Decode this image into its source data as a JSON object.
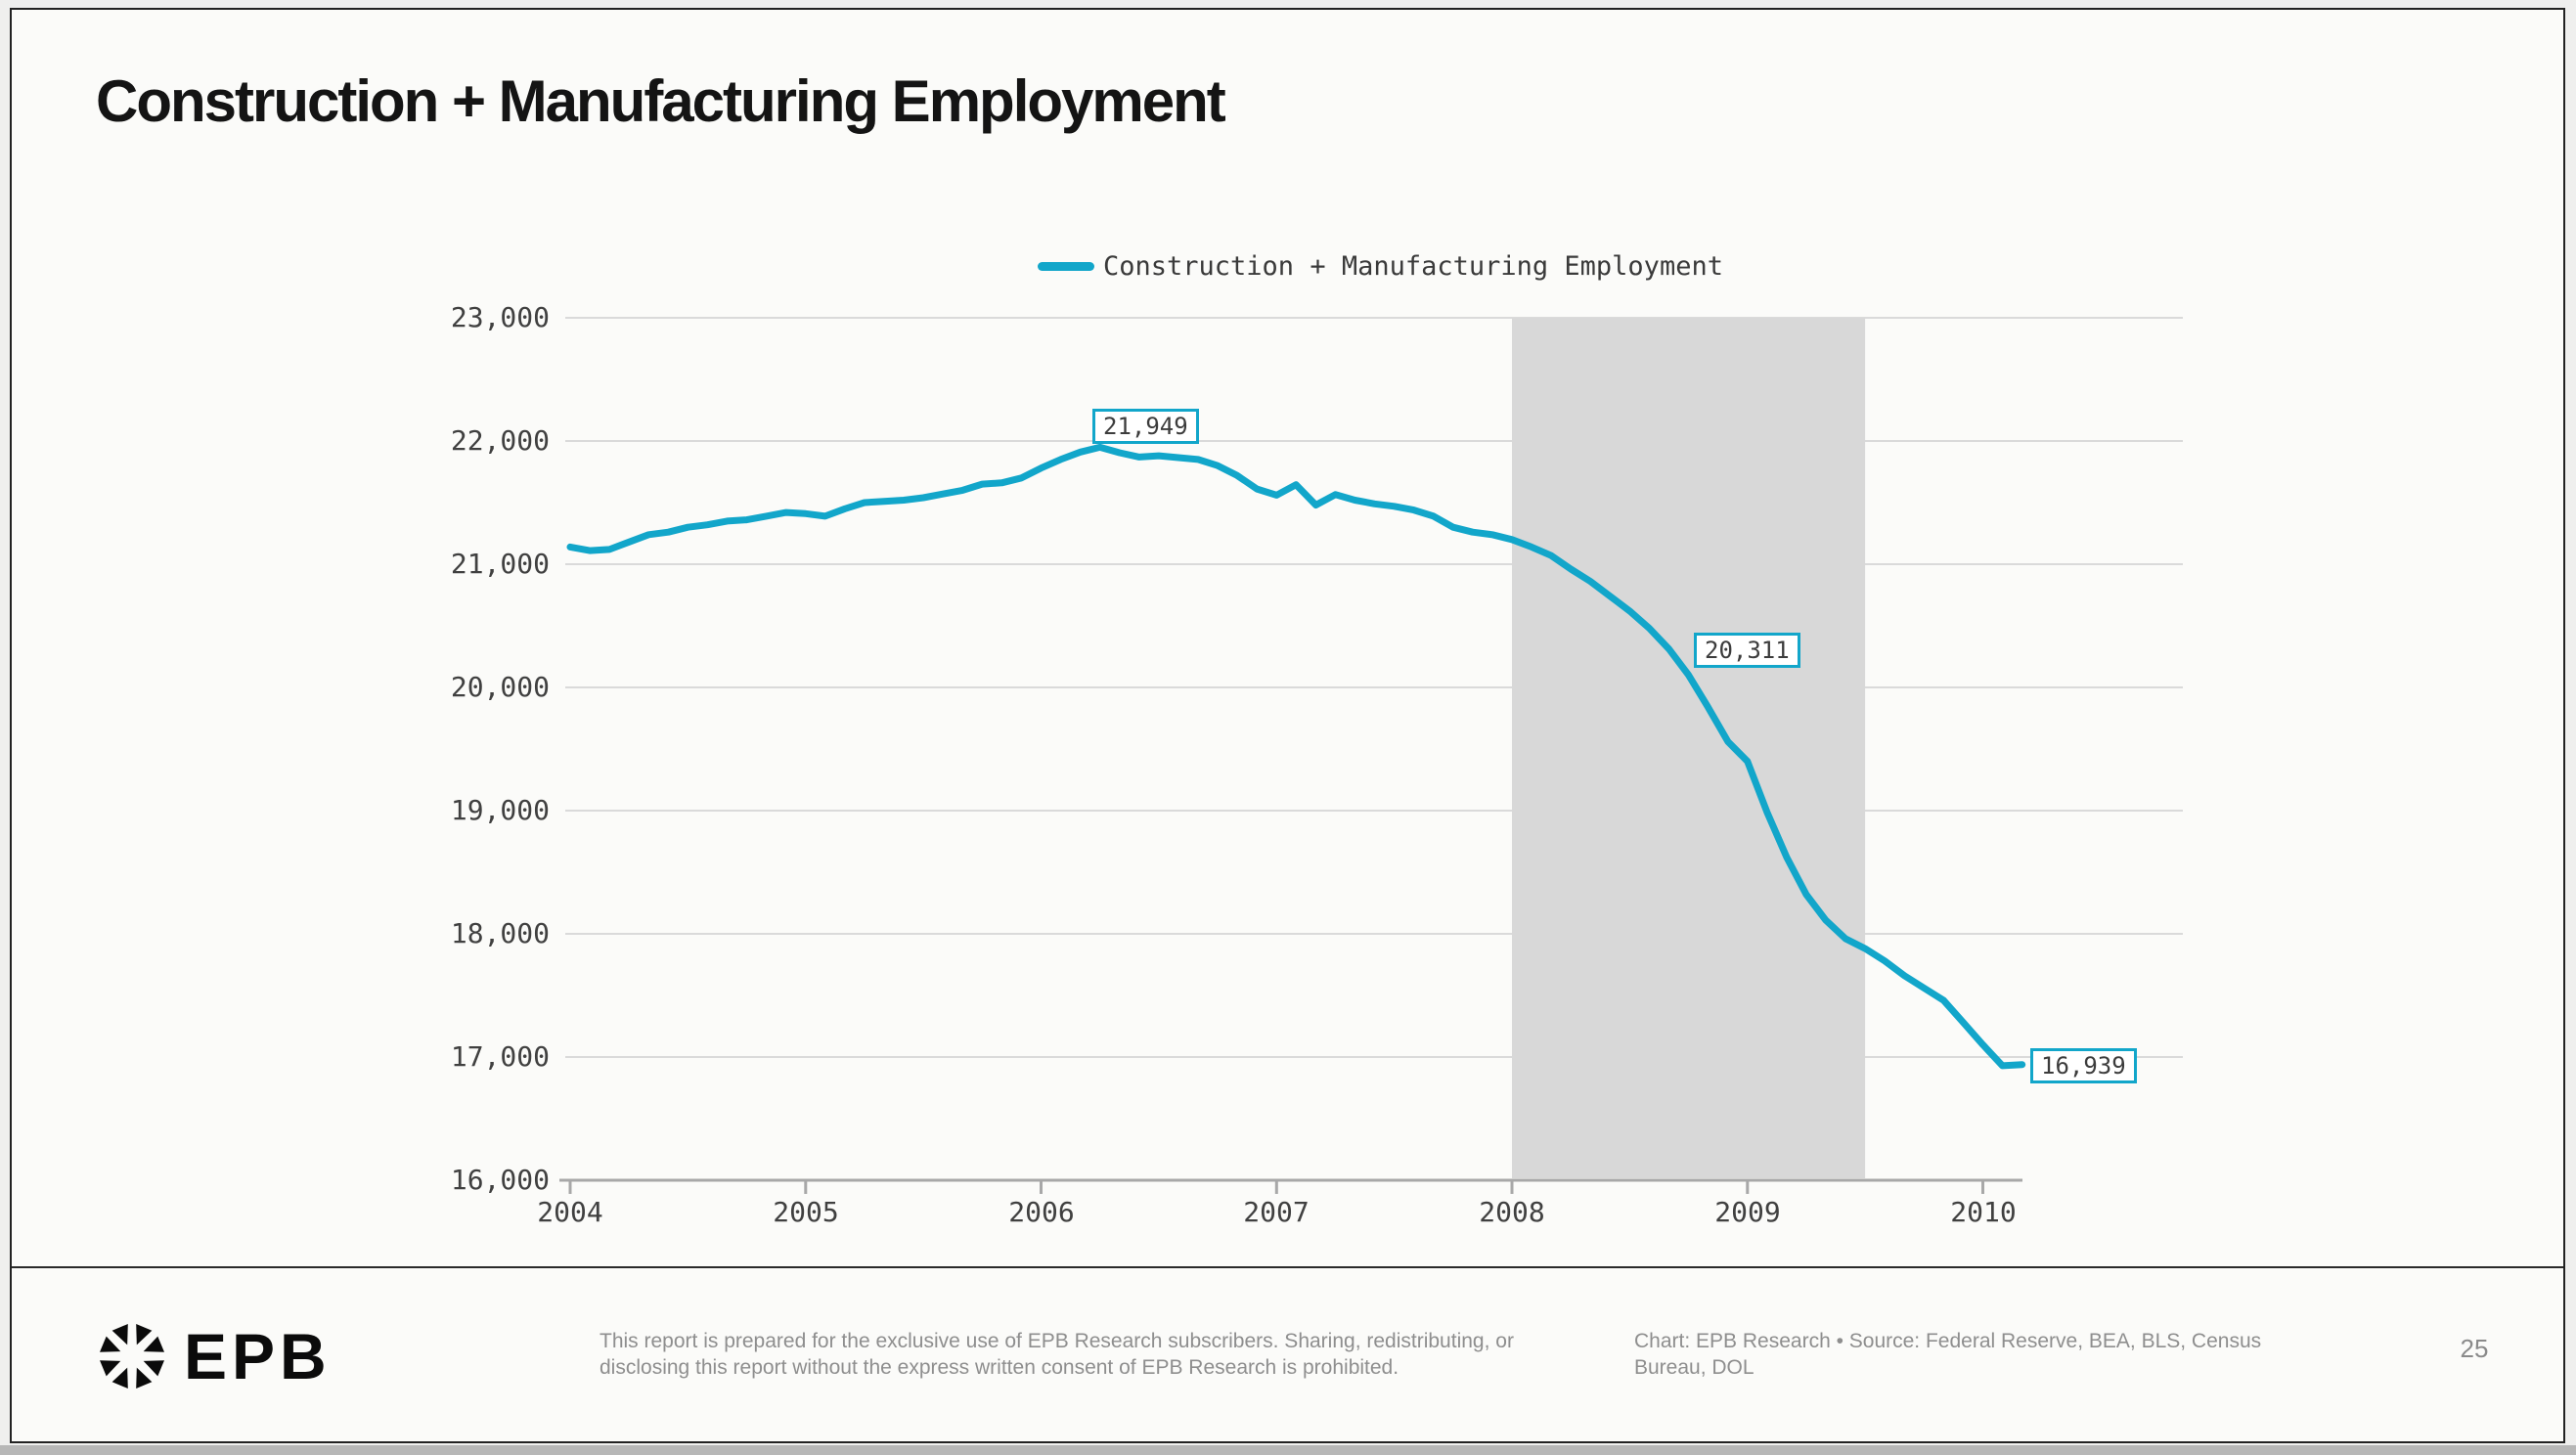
{
  "page": {
    "title": "Construction + Manufacturing Employment",
    "page_number": "25"
  },
  "legend": {
    "label": "Construction + Manufacturing Employment"
  },
  "footer": {
    "logo_text": "EPB",
    "disclaimer": "This report is prepared for the exclusive use of EPB Research subscribers. Sharing, redistributing, or disclosing this report without the express written consent of EPB Research is prohibited.",
    "source": "Chart: EPB Research  •  Source: Federal Reserve, BEA, BLS, Census Bureau, DOL"
  },
  "colors": {
    "line": "#12a6ca",
    "recession_band": "#d8d8d8",
    "gridline": "#dadada",
    "axis": "#a8a8a8",
    "tick_text": "#404040",
    "callout_text": "#3c3c3c",
    "footer_text": "#8e8e8e"
  },
  "chart_data": {
    "type": "line",
    "title": "Construction + Manufacturing Employment",
    "xlabel": "",
    "ylabel": "",
    "xlim": [
      2004,
      2010.3
    ],
    "ylim": [
      16000,
      23000
    ],
    "grid": "horizontal",
    "legend_position": "top-center",
    "x_ticks": [
      2004,
      2005,
      2006,
      2007,
      2008,
      2009,
      2010
    ],
    "y_ticks": [
      16000,
      17000,
      18000,
      19000,
      20000,
      21000,
      22000,
      23000
    ],
    "recession_band": {
      "x_start": 2008.0,
      "x_end": 2009.5
    },
    "series": [
      {
        "name": "Construction + Manufacturing Employment",
        "x": [
          2004.0,
          2004.083,
          2004.167,
          2004.25,
          2004.333,
          2004.417,
          2004.5,
          2004.583,
          2004.667,
          2004.75,
          2004.833,
          2004.917,
          2005.0,
          2005.083,
          2005.167,
          2005.25,
          2005.333,
          2005.417,
          2005.5,
          2005.583,
          2005.667,
          2005.75,
          2005.833,
          2005.917,
          2006.0,
          2006.083,
          2006.167,
          2006.25,
          2006.333,
          2006.417,
          2006.5,
          2006.583,
          2006.667,
          2006.75,
          2006.833,
          2006.917,
          2007.0,
          2007.083,
          2007.167,
          2007.25,
          2007.333,
          2007.417,
          2007.5,
          2007.583,
          2007.667,
          2007.75,
          2007.833,
          2007.917,
          2008.0,
          2008.083,
          2008.167,
          2008.25,
          2008.333,
          2008.417,
          2008.5,
          2008.583,
          2008.667,
          2008.75,
          2008.833,
          2008.917,
          2009.0,
          2009.083,
          2009.167,
          2009.25,
          2009.333,
          2009.417,
          2009.5,
          2009.583,
          2009.667,
          2009.75,
          2009.833,
          2009.917,
          2010.0,
          2010.083,
          2010.167
        ],
        "values": [
          21140,
          21110,
          21120,
          21180,
          21240,
          21260,
          21300,
          21320,
          21350,
          21360,
          21390,
          21420,
          21410,
          21390,
          21450,
          21500,
          21510,
          21520,
          21540,
          21570,
          21600,
          21650,
          21660,
          21700,
          21780,
          21850,
          21910,
          21949,
          21905,
          21870,
          21880,
          21865,
          21850,
          21800,
          21720,
          21610,
          21560,
          21645,
          21480,
          21565,
          21520,
          21490,
          21470,
          21440,
          21390,
          21300,
          21260,
          21240,
          21200,
          21140,
          21070,
          20960,
          20860,
          20740,
          20620,
          20480,
          20311,
          20100,
          19840,
          19560,
          19400,
          18990,
          18620,
          18320,
          18110,
          17960,
          17880,
          17780,
          17660,
          17560,
          17460,
          17280,
          17100,
          16929,
          16939
        ]
      }
    ],
    "callouts": [
      {
        "x": 2006.25,
        "value": 21949,
        "label": "21,949",
        "placement": "above"
      },
      {
        "x": 2008.667,
        "value": 20311,
        "label": "20,311",
        "placement": "right"
      },
      {
        "x": 2010.167,
        "value": 16939,
        "label": "16,939",
        "placement": "end"
      }
    ]
  }
}
